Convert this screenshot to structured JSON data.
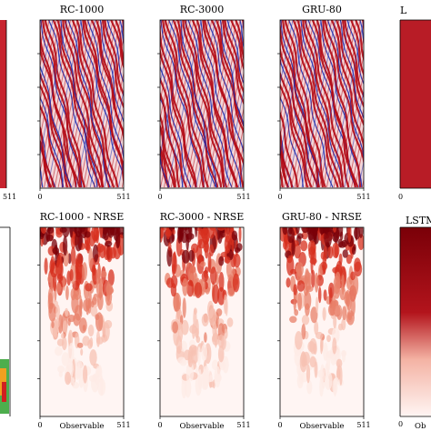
{
  "figure": {
    "colors": {
      "field_red": "#b30b16",
      "field_blue": "#1f2fb0",
      "field_pale": "#f3d6d8",
      "error_dark": "#7a0008",
      "error_mid": "#d7301f",
      "error_light": "#fdebe6",
      "error_bg": "#fff5f3"
    },
    "xlabel": "Observable",
    "top_row_partial_title": "L",
    "bottom_row_partial_title": "LSTM",
    "bottom_partial_xlabel": "Ob"
  },
  "chart_data": [
    {
      "type": "heatmap",
      "title": "RC-1000",
      "xticks": [
        "0",
        "511"
      ],
      "xlim": [
        0,
        511
      ],
      "row": "top"
    },
    {
      "type": "heatmap",
      "title": "RC-3000",
      "xticks": [
        "0",
        "511"
      ],
      "xlim": [
        0,
        511
      ],
      "row": "top"
    },
    {
      "type": "heatmap",
      "title": "GRU-80",
      "xticks": [
        "0",
        "511"
      ],
      "xlim": [
        0,
        511
      ],
      "row": "top"
    },
    {
      "type": "heatmap",
      "title": "RC-1000 - NRSE",
      "xticks": [
        "0",
        "511"
      ],
      "xlim": [
        0,
        511
      ],
      "xlabel": "Observable",
      "row": "bottom"
    },
    {
      "type": "heatmap",
      "title": "RC-3000 - NRSE",
      "xticks": [
        "0",
        "511"
      ],
      "xlim": [
        0,
        511
      ],
      "xlabel": "Observable",
      "row": "bottom"
    },
    {
      "type": "heatmap",
      "title": "GRU-80 - NRSE",
      "xticks": [
        "0",
        "511"
      ],
      "xlim": [
        0,
        511
      ],
      "xlabel": "Observable",
      "row": "bottom"
    }
  ],
  "partial_panels": {
    "left_top_tick": "511"
  }
}
